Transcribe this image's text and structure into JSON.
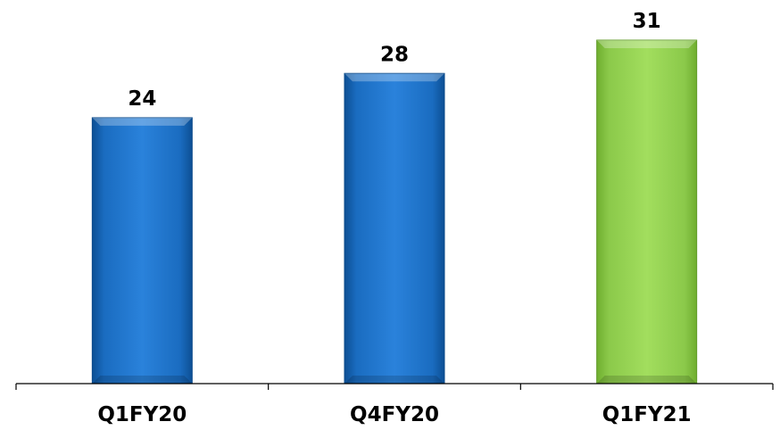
{
  "chart_data": {
    "type": "bar",
    "categories": [
      "Q1FY20",
      "Q4FY20",
      "Q1FY21"
    ],
    "values": [
      24,
      28,
      31
    ],
    "colors": [
      "#1f73c6",
      "#1f73c6",
      "#92d050"
    ],
    "data_labels": true,
    "title": "",
    "xlabel": "",
    "ylabel": "",
    "ylim": [
      0,
      31
    ],
    "grid": false,
    "legend": "none"
  }
}
